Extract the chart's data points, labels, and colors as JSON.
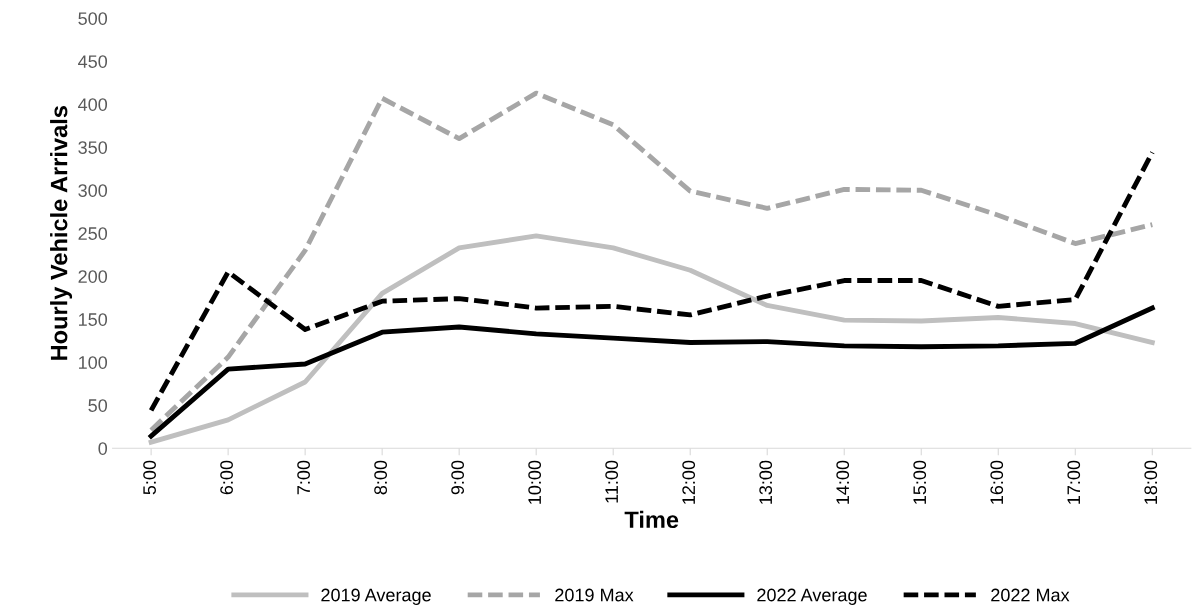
{
  "chart_data": {
    "type": "line",
    "xlabel": "Time",
    "ylabel": "Hourly Vehicle Arrivals",
    "categories": [
      "5:00",
      "6:00",
      "7:00",
      "8:00",
      "9:00",
      "10:00",
      "11:00",
      "12:00",
      "13:00",
      "14:00",
      "15:00",
      "16:00",
      "17:00",
      "18:00"
    ],
    "ylim": [
      0,
      500
    ],
    "yticks": [
      0,
      50,
      100,
      150,
      200,
      250,
      300,
      350,
      400,
      450,
      500
    ],
    "grid": false,
    "legend": "bottom",
    "marker": "none",
    "series": [
      {
        "name": "2019 Average",
        "color": "#bfbfbf",
        "line_style": "solid",
        "values": [
          7,
          33,
          77,
          180,
          233,
          247,
          233,
          207,
          166,
          149,
          148,
          152,
          145,
          123
        ]
      },
      {
        "name": "2019 Max",
        "color": "#a6a6a6",
        "line_style": "dashed",
        "values": [
          21,
          106,
          230,
          407,
          360,
          413,
          376,
          299,
          279,
          301,
          300,
          271,
          238,
          260
        ]
      },
      {
        "name": "2022 Average",
        "color": "#000000",
        "line_style": "solid",
        "values": [
          14,
          92,
          98,
          135,
          141,
          133,
          128,
          123,
          124,
          119,
          118,
          119,
          122,
          163
        ]
      },
      {
        "name": "2022 Max",
        "color": "#000000",
        "line_style": "dashed",
        "values": [
          44,
          205,
          138,
          171,
          174,
          163,
          165,
          155,
          177,
          195,
          195,
          165,
          173,
          344
        ]
      }
    ]
  }
}
